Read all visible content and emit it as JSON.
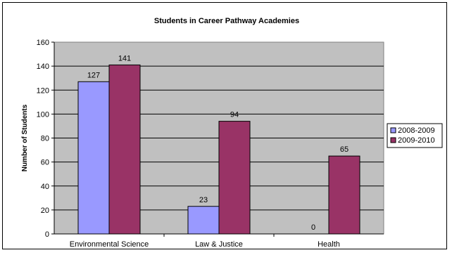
{
  "chart_data": {
    "type": "bar",
    "title": "Students in Career Pathway Academies",
    "xlabel": "",
    "ylabel": "Number of Students",
    "ylim": [
      0,
      160
    ],
    "ytick_step": 20,
    "grid": true,
    "legend_position": "right",
    "categories": [
      "Environmental Science",
      "Law & Justice",
      "Health"
    ],
    "series": [
      {
        "name": "2008-2009",
        "values": [
          127,
          23,
          0
        ],
        "color": "#9999FF"
      },
      {
        "name": "2009-2010",
        "values": [
          141,
          94,
          65
        ],
        "color": "#993366"
      }
    ],
    "plot_background": "#C0C0C0"
  }
}
